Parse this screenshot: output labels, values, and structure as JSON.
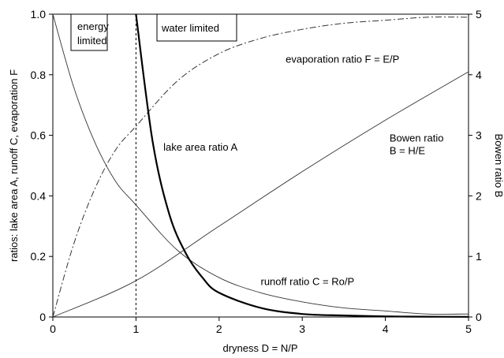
{
  "chart_data": {
    "type": "line",
    "xlabel": "dryness D = N/P",
    "ylabel": "ratios: lake area A, runoff C, evaporation F",
    "y2label": "Bowen ratio B",
    "xlim": [
      0,
      5
    ],
    "ylim": [
      0,
      1
    ],
    "y2lim": [
      0,
      5
    ],
    "x_ticks": [
      "0",
      "1",
      "2",
      "3",
      "4",
      "5"
    ],
    "y_ticks": [
      "0",
      "0.2",
      "0.4",
      "0.6",
      "0.8",
      "1.0"
    ],
    "y2_ticks": [
      "0",
      "1",
      "2",
      "3",
      "4",
      "5"
    ],
    "grid": false,
    "regions": [
      {
        "label_lines": [
          "energy",
          "limited"
        ],
        "x_range": [
          0,
          1
        ]
      },
      {
        "label_lines": [
          "water limited"
        ],
        "x_range": [
          1,
          5
        ]
      }
    ],
    "divider_x": 1,
    "series": [
      {
        "name": "evaporation ratio F = E/P",
        "axis": "left",
        "style": "dash-dot",
        "x": [
          0,
          0.25,
          0.5,
          0.75,
          1,
          1.5,
          2,
          2.5,
          3,
          3.5,
          4,
          4.5,
          5
        ],
        "values": [
          0,
          0.24,
          0.42,
          0.55,
          0.63,
          0.78,
          0.87,
          0.92,
          0.95,
          0.97,
          0.98,
          0.99,
          0.99
        ]
      },
      {
        "name": "runoff ratio C = Ro/P",
        "axis": "left",
        "style": "thin",
        "x": [
          0,
          0.25,
          0.5,
          0.75,
          1,
          1.5,
          2,
          2.5,
          3,
          3.5,
          4,
          4.5,
          5
        ],
        "values": [
          1,
          0.76,
          0.58,
          0.45,
          0.37,
          0.22,
          0.13,
          0.08,
          0.05,
          0.03,
          0.02,
          0.01,
          0.01
        ]
      },
      {
        "name": "lake area ratio A",
        "axis": "left",
        "style": "thick",
        "x": [
          1,
          1.2,
          1.4,
          1.6,
          1.8,
          2,
          2.5,
          3,
          3.5,
          4,
          4.5,
          5
        ],
        "values": [
          1,
          0.58,
          0.34,
          0.21,
          0.13,
          0.08,
          0.03,
          0.01,
          0.005,
          0.002,
          0.001,
          0.0005
        ]
      },
      {
        "name": "Bowen ratio B = H/E",
        "axis": "right",
        "style": "thin",
        "x": [
          0,
          1,
          2,
          3,
          4,
          5
        ],
        "values": [
          0,
          0.6,
          1.5,
          2.4,
          3.25,
          4.05
        ]
      }
    ],
    "annotations": [
      {
        "text_lines": [
          "evaporation ratio F = E/P"
        ],
        "x": 2.8,
        "y": 0.84
      },
      {
        "text_lines": [
          "lake area ratio A"
        ],
        "x": 1.33,
        "y": 0.55
      },
      {
        "text_lines": [
          "Bowen ratio",
          "B = H/E"
        ],
        "x": 4.05,
        "y": 0.58
      },
      {
        "text_lines": [
          "runoff ratio C = Ro/P"
        ],
        "x": 2.5,
        "y": 0.105
      }
    ]
  }
}
